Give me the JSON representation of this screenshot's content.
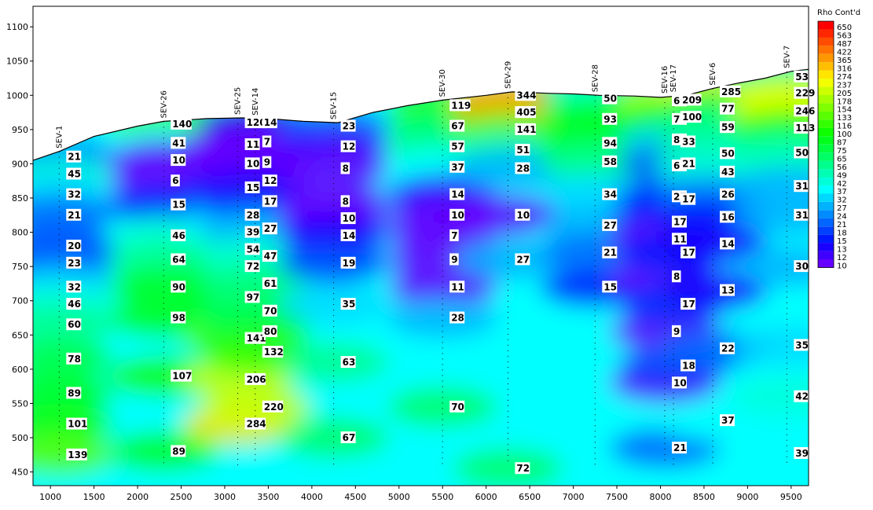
{
  "chart_data": {
    "type": "heatmap",
    "title": "",
    "xlabel": "",
    "ylabel": "",
    "xlim": [
      800,
      9700
    ],
    "ylim": [
      430,
      1130
    ],
    "x_ticks": [
      1000,
      1500,
      2000,
      2500,
      3000,
      3500,
      4000,
      4500,
      5000,
      5500,
      6000,
      6500,
      7000,
      7500,
      8000,
      8500,
      9000,
      9500
    ],
    "y_ticks": [
      450,
      500,
      550,
      600,
      650,
      700,
      750,
      800,
      850,
      900,
      950,
      1000,
      1050,
      1100
    ],
    "grid": false,
    "legend": {
      "title": "Rho Cont'd",
      "placement": "right",
      "levels": [
        {
          "value": "650",
          "color": "#ff0000"
        },
        {
          "value": "563",
          "color": "#ff2600"
        },
        {
          "value": "487",
          "color": "#ff4c00"
        },
        {
          "value": "422",
          "color": "#ff7200"
        },
        {
          "value": "365",
          "color": "#ff9800"
        },
        {
          "value": "316",
          "color": "#ffbf00"
        },
        {
          "value": "274",
          "color": "#ffe500"
        },
        {
          "value": "237",
          "color": "#f2ff00"
        },
        {
          "value": "205",
          "color": "#ccff00"
        },
        {
          "value": "178",
          "color": "#a6ff00"
        },
        {
          "value": "154",
          "color": "#7fff00"
        },
        {
          "value": "133",
          "color": "#59ff00"
        },
        {
          "value": "116",
          "color": "#33ff00"
        },
        {
          "value": "100",
          "color": "#0dff00"
        },
        {
          "value": "87",
          "color": "#00ff1a"
        },
        {
          "value": "75",
          "color": "#00ff40"
        },
        {
          "value": "65",
          "color": "#00ff66"
        },
        {
          "value": "56",
          "color": "#00ff8c"
        },
        {
          "value": "49",
          "color": "#00ffb3"
        },
        {
          "value": "42",
          "color": "#00ffd9"
        },
        {
          "value": "37",
          "color": "#00ffff"
        },
        {
          "value": "32",
          "color": "#00d9ff"
        },
        {
          "value": "27",
          "color": "#00b3ff"
        },
        {
          "value": "24",
          "color": "#008cff"
        },
        {
          "value": "21",
          "color": "#0066ff"
        },
        {
          "value": "18",
          "color": "#0040ff"
        },
        {
          "value": "15",
          "color": "#001aff"
        },
        {
          "value": "13",
          "color": "#1a00ff"
        },
        {
          "value": "12",
          "color": "#4000ff"
        },
        {
          "value": "10",
          "color": "#6600ff"
        }
      ]
    },
    "topography": [
      [
        800,
        905
      ],
      [
        1100,
        918
      ],
      [
        1500,
        940
      ],
      [
        2000,
        955
      ],
      [
        2300,
        962
      ],
      [
        2800,
        966
      ],
      [
        3200,
        967
      ],
      [
        3500,
        966
      ],
      [
        3900,
        962
      ],
      [
        4300,
        960
      ],
      [
        4700,
        975
      ],
      [
        5100,
        985
      ],
      [
        5500,
        993
      ],
      [
        6000,
        1000
      ],
      [
        6300,
        1005
      ],
      [
        6700,
        1003
      ],
      [
        7000,
        1002
      ],
      [
        7300,
        1000
      ],
      [
        7700,
        999
      ],
      [
        8000,
        997
      ],
      [
        8300,
        1000
      ],
      [
        8600,
        1010
      ],
      [
        8900,
        1018
      ],
      [
        9200,
        1025
      ],
      [
        9500,
        1035
      ],
      [
        9700,
        1038
      ]
    ],
    "soundings": [
      {
        "name": "SEV-1",
        "x": 1100,
        "top": 918,
        "readings": [
          {
            "v": "21",
            "y": 910
          },
          {
            "v": "45",
            "y": 885
          },
          {
            "v": "32",
            "y": 855
          },
          {
            "v": "21",
            "y": 825
          },
          {
            "v": "20",
            "y": 780
          },
          {
            "v": "23",
            "y": 755
          },
          {
            "v": "32",
            "y": 720
          },
          {
            "v": "46",
            "y": 695
          },
          {
            "v": "60",
            "y": 665
          },
          {
            "v": "78",
            "y": 615
          },
          {
            "v": "89",
            "y": 565
          },
          {
            "v": "101",
            "y": 520
          },
          {
            "v": "139",
            "y": 475
          }
        ]
      },
      {
        "name": "SEV-26",
        "x": 2300,
        "top": 962,
        "readings": [
          {
            "v": "140",
            "y": 958
          },
          {
            "v": "41",
            "y": 930
          },
          {
            "v": "10",
            "y": 905
          },
          {
            "v": "6",
            "y": 875
          },
          {
            "v": "15",
            "y": 840
          },
          {
            "v": "46",
            "y": 795
          },
          {
            "v": "64",
            "y": 760
          },
          {
            "v": "90",
            "y": 720
          },
          {
            "v": "98",
            "y": 675
          },
          {
            "v": "107",
            "y": 590
          },
          {
            "v": "89",
            "y": 480
          }
        ]
      },
      {
        "name": "SEV-25",
        "x": 3150,
        "top": 967,
        "readings": [
          {
            "v": "120",
            "y": 960
          },
          {
            "v": "11",
            "y": 928
          },
          {
            "v": "10",
            "y": 900
          },
          {
            "v": "15",
            "y": 865
          },
          {
            "v": "28",
            "y": 825
          },
          {
            "v": "39",
            "y": 800
          },
          {
            "v": "54",
            "y": 775
          },
          {
            "v": "72",
            "y": 750
          },
          {
            "v": "97",
            "y": 705
          },
          {
            "v": "141",
            "y": 645
          },
          {
            "v": "206",
            "y": 585
          },
          {
            "v": "284",
            "y": 520
          }
        ]
      },
      {
        "name": "SEV-14",
        "x": 3350,
        "top": 966,
        "readings": [
          {
            "v": "14",
            "y": 960
          },
          {
            "v": "7",
            "y": 932
          },
          {
            "v": "9",
            "y": 902
          },
          {
            "v": "12",
            "y": 875
          },
          {
            "v": "17",
            "y": 845
          },
          {
            "v": "27",
            "y": 805
          },
          {
            "v": "47",
            "y": 765
          },
          {
            "v": "61",
            "y": 725
          },
          {
            "v": "70",
            "y": 685
          },
          {
            "v": "80",
            "y": 655
          },
          {
            "v": "132",
            "y": 625
          },
          {
            "v": "220",
            "y": 545
          }
        ]
      },
      {
        "name": "SEV-15",
        "x": 4250,
        "top": 960,
        "readings": [
          {
            "v": "23",
            "y": 955
          },
          {
            "v": "12",
            "y": 925
          },
          {
            "v": "8",
            "y": 893
          },
          {
            "v": "8",
            "y": 845
          },
          {
            "v": "10",
            "y": 820
          },
          {
            "v": "14",
            "y": 795
          },
          {
            "v": "19",
            "y": 755
          },
          {
            "v": "35",
            "y": 695
          },
          {
            "v": "63",
            "y": 610
          },
          {
            "v": "67",
            "y": 500
          }
        ]
      },
      {
        "name": "SEV-30",
        "x": 5500,
        "top": 993,
        "readings": [
          {
            "v": "119",
            "y": 985
          },
          {
            "v": "67",
            "y": 955
          },
          {
            "v": "57",
            "y": 925
          },
          {
            "v": "37",
            "y": 895
          },
          {
            "v": "14",
            "y": 855
          },
          {
            "v": "10",
            "y": 825
          },
          {
            "v": "7",
            "y": 795
          },
          {
            "v": "9",
            "y": 760
          },
          {
            "v": "11",
            "y": 720
          },
          {
            "v": "28",
            "y": 675
          },
          {
            "v": "70",
            "y": 545
          }
        ]
      },
      {
        "name": "SEV-29",
        "x": 6250,
        "top": 1005,
        "readings": [
          {
            "v": "344",
            "y": 1000
          },
          {
            "v": "405",
            "y": 975
          },
          {
            "v": "141",
            "y": 950
          },
          {
            "v": "51",
            "y": 920
          },
          {
            "v": "28",
            "y": 893
          },
          {
            "v": "10",
            "y": 825
          },
          {
            "v": "27",
            "y": 760
          },
          {
            "v": "72",
            "y": 455
          }
        ]
      },
      {
        "name": "SEV-28",
        "x": 7250,
        "top": 1000,
        "readings": [
          {
            "v": "50",
            "y": 995
          },
          {
            "v": "93",
            "y": 965
          },
          {
            "v": "94",
            "y": 930
          },
          {
            "v": "58",
            "y": 903
          },
          {
            "v": "34",
            "y": 855
          },
          {
            "v": "27",
            "y": 810
          },
          {
            "v": "21",
            "y": 770
          },
          {
            "v": "15",
            "y": 720
          }
        ]
      },
      {
        "name": "SEV-16",
        "x": 8050,
        "top": 998,
        "readings": [
          {
            "v": "69",
            "y": 992
          },
          {
            "v": "76",
            "y": 965
          },
          {
            "v": "87",
            "y": 935
          },
          {
            "v": "61",
            "y": 897
          },
          {
            "v": "27",
            "y": 852
          },
          {
            "v": "17",
            "y": 815
          },
          {
            "v": "11",
            "y": 790
          },
          {
            "v": "8",
            "y": 735
          },
          {
            "v": "9",
            "y": 655
          },
          {
            "v": "10",
            "y": 580
          },
          {
            "v": "21",
            "y": 485
          }
        ]
      },
      {
        "name": "SEV-17",
        "x": 8150,
        "top": 1000,
        "readings": [
          {
            "v": "209",
            "y": 993
          },
          {
            "v": "100",
            "y": 968
          },
          {
            "v": "33",
            "y": 932
          },
          {
            "v": "21",
            "y": 900
          },
          {
            "v": "17",
            "y": 848
          },
          {
            "v": "17",
            "y": 770
          },
          {
            "v": "17",
            "y": 695
          },
          {
            "v": "18",
            "y": 605
          }
        ]
      },
      {
        "name": "SEV-6",
        "x": 8600,
        "top": 1010,
        "readings": [
          {
            "v": "285",
            "y": 1005
          },
          {
            "v": "77",
            "y": 980
          },
          {
            "v": "59",
            "y": 953
          },
          {
            "v": "50",
            "y": 915
          },
          {
            "v": "43",
            "y": 888
          },
          {
            "v": "26",
            "y": 855
          },
          {
            "v": "16",
            "y": 822
          },
          {
            "v": "14",
            "y": 783
          },
          {
            "v": "13",
            "y": 715
          },
          {
            "v": "22",
            "y": 630
          },
          {
            "v": "37",
            "y": 525
          }
        ]
      },
      {
        "name": "SEV-7",
        "x": 9450,
        "top": 1035,
        "readings": [
          {
            "v": "53",
            "y": 1027
          },
          {
            "v": "229",
            "y": 1003
          },
          {
            "v": "246",
            "y": 977
          },
          {
            "v": "113",
            "y": 952
          },
          {
            "v": "50",
            "y": 916
          },
          {
            "v": "31",
            "y": 867
          },
          {
            "v": "31",
            "y": 825
          },
          {
            "v": "30",
            "y": 750
          },
          {
            "v": "35",
            "y": 635
          },
          {
            "v": "42",
            "y": 560
          },
          {
            "v": "39",
            "y": 477
          }
        ]
      }
    ]
  }
}
